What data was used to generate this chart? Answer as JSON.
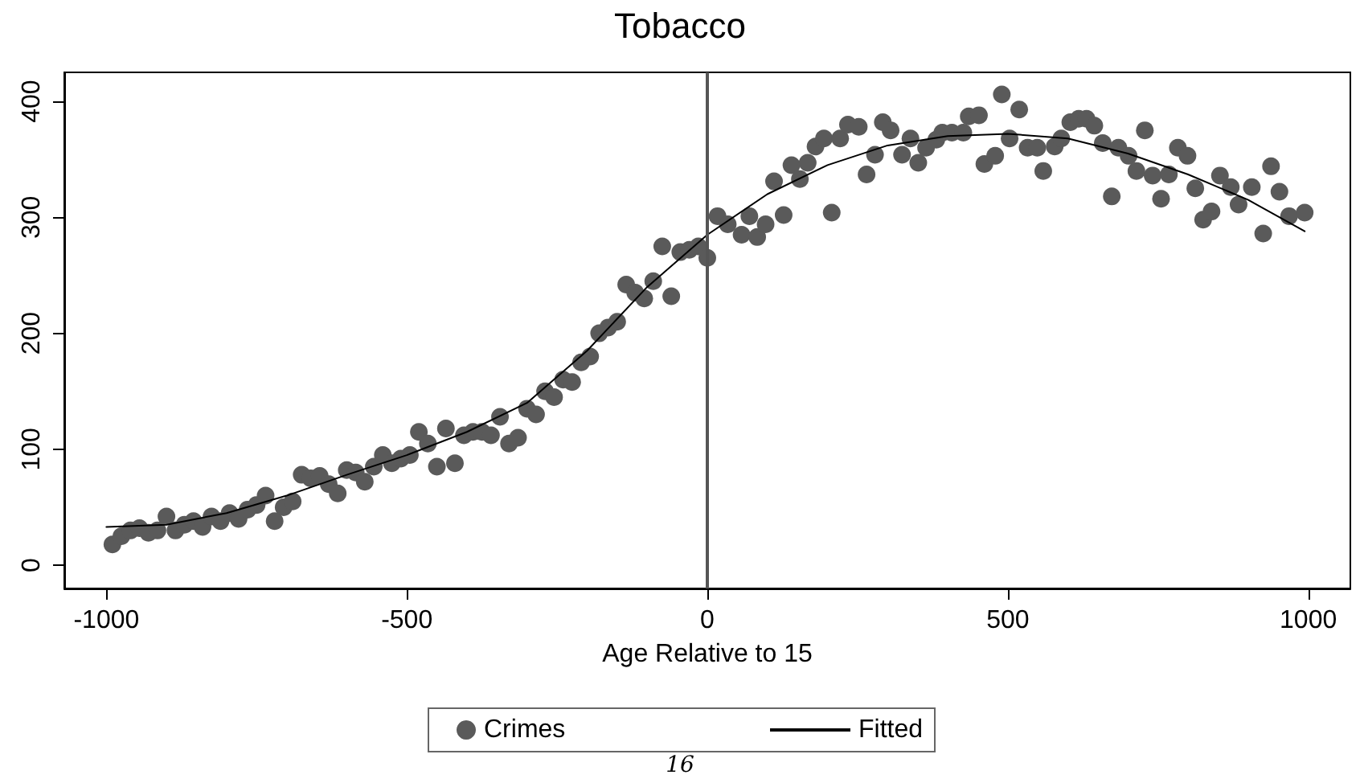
{
  "chart_data": {
    "type": "scatter",
    "title": "Tobacco",
    "xlabel": "Age Relative to 15",
    "xlim": [
      -1070,
      1070
    ],
    "xticks": [
      -1000,
      -500,
      0,
      500,
      1000
    ],
    "ylim": [
      -20,
      425
    ],
    "yticks": [
      0,
      100,
      200,
      300,
      400
    ],
    "grid": false,
    "legend": "bottom",
    "marker": "circle",
    "ref_lines": [
      {
        "axis": "x",
        "value": 0,
        "color": "#555555"
      }
    ],
    "annotations": [
      "16"
    ],
    "series": [
      {
        "name": "Crimes",
        "color": "#5a5a5a",
        "x": [
          -990,
          -975,
          -960,
          -945,
          -930,
          -915,
          -900,
          -885,
          -870,
          -855,
          -840,
          -825,
          -810,
          -795,
          -780,
          -765,
          -750,
          -735,
          -720,
          -705,
          -690,
          -675,
          -660,
          -645,
          -630,
          -615,
          -600,
          -585,
          -570,
          -555,
          -540,
          -525,
          -510,
          -495,
          -480,
          -465,
          -450,
          -435,
          -420,
          -405,
          -390,
          -375,
          -360,
          -345,
          -330,
          -315,
          -300,
          -285,
          -270,
          -255,
          -240,
          -225,
          -210,
          -195,
          -180,
          -165,
          -150,
          -135,
          -120,
          -105,
          -90,
          -75,
          -60,
          -45,
          -30,
          -15,
          0,
          17,
          34,
          57,
          70,
          83,
          97,
          111,
          127,
          140,
          154,
          167,
          180,
          194,
          207,
          221,
          234,
          252,
          265,
          279,
          292,
          305,
          324,
          338,
          351,
          364,
          381,
          391,
          407,
          426,
          435,
          452,
          461,
          479,
          490,
          503,
          519,
          533,
          549,
          559,
          578,
          589,
          604,
          618,
          631,
          644,
          658,
          673,
          684,
          701,
          714,
          728,
          741,
          755,
          768,
          783,
          799,
          812,
          825,
          839,
          853,
          871,
          884,
          906,
          925,
          938,
          952,
          968,
          994
        ],
        "values": [
          18,
          25,
          30,
          32,
          28,
          30,
          42,
          30,
          35,
          38,
          33,
          42,
          38,
          45,
          40,
          48,
          52,
          60,
          38,
          50,
          55,
          78,
          75,
          77,
          70,
          62,
          82,
          80,
          72,
          85,
          95,
          88,
          92,
          95,
          115,
          105,
          85,
          118,
          88,
          112,
          115,
          115,
          112,
          128,
          105,
          110,
          135,
          130,
          150,
          145,
          160,
          158,
          175,
          180,
          200,
          205,
          210,
          242,
          235,
          230,
          245,
          275,
          232,
          270,
          272,
          275,
          265,
          301,
          294,
          285,
          301,
          283,
          294,
          331,
          302,
          345,
          333,
          347,
          361,
          368,
          304,
          368,
          380,
          378,
          337,
          354,
          382,
          375,
          354,
          368,
          347,
          360,
          367,
          373,
          373,
          373,
          387,
          388,
          346,
          353,
          406,
          368,
          393,
          360,
          360,
          340,
          361,
          368,
          382,
          385,
          385,
          379,
          364,
          318,
          360,
          353,
          340,
          375,
          336,
          316,
          337,
          360,
          353,
          325,
          298,
          305,
          336,
          326,
          311,
          326,
          286,
          344,
          322,
          301,
          304
        ]
      },
      {
        "name": "Fitted",
        "type": "line",
        "color": "#000000",
        "marker": "none",
        "x": [
          -1000,
          -900,
          -800,
          -700,
          -600,
          -500,
          -400,
          -300,
          -200,
          -100,
          0,
          100,
          200,
          300,
          400,
          500,
          600,
          700,
          800,
          900,
          994
        ],
        "values": [
          33,
          35,
          45,
          60,
          78,
          95,
          115,
          140,
          185,
          240,
          285,
          320,
          345,
          362,
          370,
          372,
          368,
          355,
          337,
          315,
          288
        ]
      }
    ]
  }
}
